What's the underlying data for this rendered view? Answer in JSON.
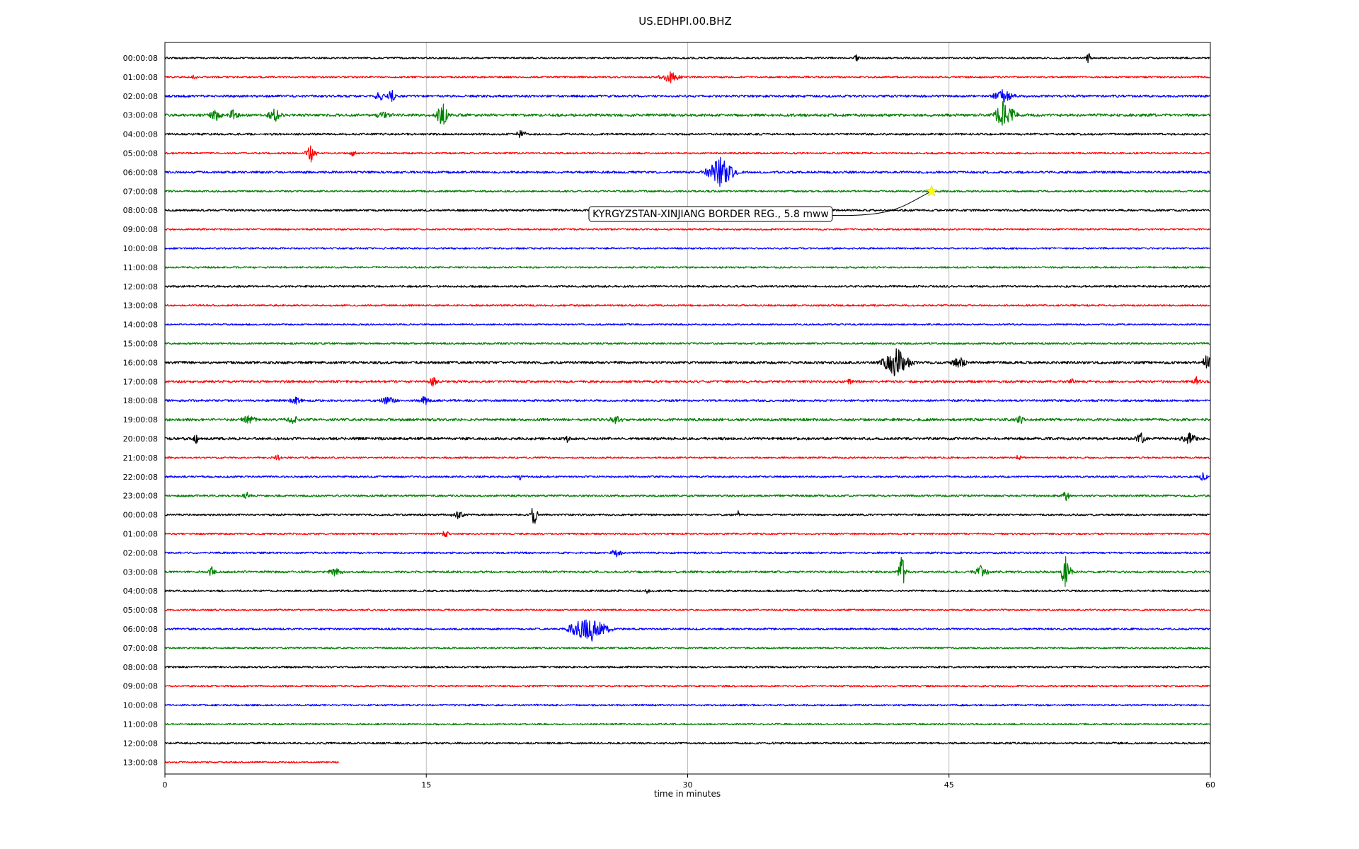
{
  "chart_data": {
    "type": "line",
    "title": "US.EDHPI.00.BHZ",
    "xlabel": "time in minutes",
    "ylabel": "",
    "xlim": [
      0,
      60
    ],
    "x_ticks": [
      "0",
      "15",
      "30",
      "45",
      "60"
    ],
    "x_tick_values": [
      0,
      15,
      30,
      45,
      60
    ],
    "grid": "vertical",
    "legend": "none",
    "trace_colors": [
      "#000000",
      "#ff0000",
      "#0000ff",
      "#008000"
    ],
    "row_labels": [
      "00:00:08",
      "01:00:08",
      "02:00:08",
      "03:00:08",
      "04:00:08",
      "05:00:08",
      "06:00:08",
      "07:00:08",
      "08:00:08",
      "09:00:08",
      "10:00:08",
      "11:00:08",
      "12:00:08",
      "13:00:08",
      "14:00:08",
      "15:00:08",
      "16:00:08",
      "17:00:08",
      "18:00:08",
      "19:00:08",
      "20:00:08",
      "21:00:08",
      "22:00:08",
      "23:00:08",
      "00:00:08",
      "01:00:08",
      "02:00:08",
      "03:00:08",
      "04:00:08",
      "05:00:08",
      "06:00:08",
      "07:00:08",
      "08:00:08",
      "09:00:08",
      "10:00:08",
      "11:00:08",
      "12:00:08",
      "13:00:08"
    ],
    "last_row_end_minutes": 10,
    "noise_level": [
      1.2,
      1.2,
      1.6,
      1.8,
      1.4,
      1.2,
      1.6,
      1.3,
      1.4,
      1.2,
      1.2,
      1.2,
      1.4,
      1.2,
      1.1,
      1.3,
      1.8,
      1.6,
      1.5,
      1.8,
      1.8,
      1.2,
      1.3,
      1.4,
      1.3,
      1.2,
      1.3,
      1.5,
      1.3,
      1.2,
      1.3,
      1.2,
      1.3,
      1.2,
      1.2,
      1.2,
      1.3,
      1.2
    ],
    "bursts": [
      {
        "row": 0,
        "minute": 39.7,
        "amplitude": 9,
        "duration": 0.3
      },
      {
        "row": 0,
        "minute": 53.0,
        "amplitude": 8,
        "duration": 0.4
      },
      {
        "row": 1,
        "minute": 1.7,
        "amplitude": 5,
        "duration": 0.4
      },
      {
        "row": 1,
        "minute": 29.0,
        "amplitude": 9,
        "duration": 1.3
      },
      {
        "row": 2,
        "minute": 12.3,
        "amplitude": 9,
        "duration": 0.6
      },
      {
        "row": 2,
        "minute": 13.0,
        "amplitude": 10,
        "duration": 0.6
      },
      {
        "row": 2,
        "minute": 48.1,
        "amplitude": 10,
        "duration": 1.4
      },
      {
        "row": 3,
        "minute": 2.9,
        "amplitude": 11,
        "duration": 0.8
      },
      {
        "row": 3,
        "minute": 3.9,
        "amplitude": 9,
        "duration": 0.8
      },
      {
        "row": 3,
        "minute": 6.3,
        "amplitude": 10,
        "duration": 1.0
      },
      {
        "row": 3,
        "minute": 12.5,
        "amplitude": 6,
        "duration": 1.5
      },
      {
        "row": 3,
        "minute": 15.9,
        "amplitude": 24,
        "duration": 0.6
      },
      {
        "row": 3,
        "minute": 48.2,
        "amplitude": 24,
        "duration": 1.2
      },
      {
        "row": 4,
        "minute": 20.4,
        "amplitude": 7,
        "duration": 0.9
      },
      {
        "row": 5,
        "minute": 8.4,
        "amplitude": 13,
        "duration": 0.7
      },
      {
        "row": 5,
        "minute": 10.8,
        "amplitude": 6,
        "duration": 0.4
      },
      {
        "row": 6,
        "minute": 31.9,
        "amplitude": 24,
        "duration": 1.6
      },
      {
        "row": 16,
        "minute": 42.0,
        "amplitude": 24,
        "duration": 1.6
      },
      {
        "row": 16,
        "minute": 45.6,
        "amplitude": 10,
        "duration": 1.0
      },
      {
        "row": 16,
        "minute": 59.8,
        "amplitude": 12,
        "duration": 0.6
      },
      {
        "row": 17,
        "minute": 15.4,
        "amplitude": 8,
        "duration": 0.6
      },
      {
        "row": 17,
        "minute": 39.3,
        "amplitude": 6,
        "duration": 0.5
      },
      {
        "row": 17,
        "minute": 52.0,
        "amplitude": 7,
        "duration": 0.4
      },
      {
        "row": 17,
        "minute": 59.2,
        "amplitude": 8,
        "duration": 0.5
      },
      {
        "row": 18,
        "minute": 7.5,
        "amplitude": 7,
        "duration": 0.8
      },
      {
        "row": 18,
        "minute": 12.8,
        "amplitude": 8,
        "duration": 1.0
      },
      {
        "row": 18,
        "minute": 14.9,
        "amplitude": 8,
        "duration": 0.7
      },
      {
        "row": 19,
        "minute": 4.8,
        "amplitude": 8,
        "duration": 1.0
      },
      {
        "row": 19,
        "minute": 7.3,
        "amplitude": 8,
        "duration": 1.0
      },
      {
        "row": 19,
        "minute": 25.9,
        "amplitude": 7,
        "duration": 1.0
      },
      {
        "row": 19,
        "minute": 49.1,
        "amplitude": 7,
        "duration": 0.8
      },
      {
        "row": 20,
        "minute": 1.8,
        "amplitude": 8,
        "duration": 0.4
      },
      {
        "row": 20,
        "minute": 23.1,
        "amplitude": 6,
        "duration": 0.5
      },
      {
        "row": 20,
        "minute": 56.0,
        "amplitude": 10,
        "duration": 0.7
      },
      {
        "row": 20,
        "minute": 58.8,
        "amplitude": 9,
        "duration": 1.2
      },
      {
        "row": 21,
        "minute": 6.5,
        "amplitude": 7,
        "duration": 0.4
      },
      {
        "row": 21,
        "minute": 49.0,
        "amplitude": 7,
        "duration": 0.3
      },
      {
        "row": 22,
        "minute": 20.4,
        "amplitude": 6,
        "duration": 0.4
      },
      {
        "row": 22,
        "minute": 59.6,
        "amplitude": 8,
        "duration": 0.5
      },
      {
        "row": 23,
        "minute": 4.7,
        "amplitude": 6,
        "duration": 0.6
      },
      {
        "row": 23,
        "minute": 51.7,
        "amplitude": 9,
        "duration": 0.5
      },
      {
        "row": 24,
        "minute": 16.8,
        "amplitude": 6,
        "duration": 1.0
      },
      {
        "row": 24,
        "minute": 21.2,
        "amplitude": 22,
        "duration": 0.4
      },
      {
        "row": 24,
        "minute": 32.9,
        "amplitude": 6,
        "duration": 0.3
      },
      {
        "row": 25,
        "minute": 16.1,
        "amplitude": 6,
        "duration": 0.5
      },
      {
        "row": 26,
        "minute": 25.9,
        "amplitude": 7,
        "duration": 0.8
      },
      {
        "row": 27,
        "minute": 2.7,
        "amplitude": 10,
        "duration": 0.4
      },
      {
        "row": 27,
        "minute": 9.8,
        "amplitude": 7,
        "duration": 1.0
      },
      {
        "row": 27,
        "minute": 42.3,
        "amplitude": 28,
        "duration": 0.4
      },
      {
        "row": 27,
        "minute": 46.8,
        "amplitude": 10,
        "duration": 1.0
      },
      {
        "row": 27,
        "minute": 51.7,
        "amplitude": 24,
        "duration": 0.6
      },
      {
        "row": 28,
        "minute": 27.7,
        "amplitude": 6,
        "duration": 0.3
      },
      {
        "row": 30,
        "minute": 24.3,
        "amplitude": 22,
        "duration": 2.2
      }
    ],
    "annotation": {
      "text": "KYRGYZSTAN-XINJIANG BORDER REG., 5.8 mww",
      "row": 7,
      "minute": 44.0,
      "marker": "star",
      "marker_color": "#ffff00"
    }
  }
}
